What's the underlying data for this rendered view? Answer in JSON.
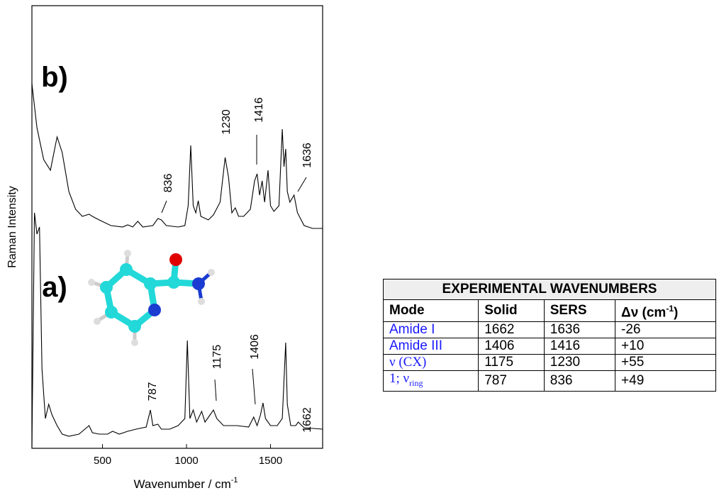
{
  "chart_data": {
    "type": "line",
    "xlabel": "Wavenumber / cm",
    "xlabel_sup": "-1",
    "ylabel": "Raman Intensity",
    "xlim": [
      80,
      1810
    ],
    "ylim": [
      0,
      624
    ],
    "xticks": [
      500,
      1000,
      1500
    ],
    "series": [
      {
        "color": "#000000",
        "x": [
          80,
          110,
          150,
          190,
          230,
          260,
          300,
          340,
          380,
          420,
          440,
          480,
          550,
          620,
          650,
          680,
          710,
          740,
          800,
          830,
          850,
          880,
          950,
          990,
          1010,
          1025,
          1040,
          1055,
          1070,
          1085,
          1130,
          1160,
          1200,
          1230,
          1250,
          1270,
          1290,
          1310,
          1340,
          1380,
          1405,
          1420,
          1435,
          1450,
          1465,
          1485,
          1500,
          1520,
          1550,
          1570,
          1580,
          1590,
          1600,
          1615,
          1640,
          1660,
          1700,
          1750,
          1810
        ],
        "values": [
          514,
          452,
          407,
          392,
          439,
          417,
          362,
          337,
          327,
          330,
          327,
          322,
          314,
          312,
          315,
          312,
          320,
          312,
          314,
          324,
          322,
          314,
          312,
          314,
          342,
          427,
          342,
          332,
          349,
          327,
          322,
          329,
          347,
          410,
          382,
          332,
          339,
          327,
          327,
          337,
          377,
          387,
          357,
          377,
          347,
          392,
          342,
          334,
          342,
          450,
          397,
          422,
          362,
          347,
          357,
          332,
          314,
          310,
          310
        ]
      },
      {
        "color": "#000000",
        "x": [
          80,
          95,
          110,
          125,
          140,
          160,
          180,
          200,
          230,
          260,
          300,
          360,
          420,
          440,
          480,
          530,
          560,
          600,
          650,
          700,
          760,
          785,
          800,
          830,
          850,
          900,
          950,
          990,
          1005,
          1020,
          1040,
          1060,
          1090,
          1110,
          1140,
          1160,
          1180,
          1220,
          1260,
          1300,
          1370,
          1400,
          1420,
          1440,
          1455,
          1470,
          1500,
          1540,
          1570,
          1590,
          1600,
          1620,
          1650,
          1665,
          1700,
          1810
        ],
        "values": [
          2,
          332,
          302,
          312,
          112,
          42,
          62,
          47,
          32,
          20,
          17,
          20,
          32,
          22,
          20,
          20,
          24,
          20,
          24,
          27,
          30,
          54,
          32,
          34,
          27,
          27,
          32,
          42,
          152,
          42,
          54,
          37,
          52,
          37,
          47,
          54,
          42,
          32,
          32,
          32,
          30,
          44,
          32,
          47,
          64,
          42,
          32,
          32,
          42,
          149,
          62,
          32,
          32,
          37,
          29,
          27
        ]
      }
    ],
    "annotations": [
      "b)",
      "a)",
      "836",
      "1230",
      "1416",
      "1636",
      "787",
      "1175",
      "1406",
      "1662"
    ]
  },
  "table": {
    "title": "EXPERIMENTAL WAVENUMBERS",
    "header": [
      "Mode",
      "Solid",
      "SERS",
      {
        "text": "Δν (cm",
        "sup": "-1",
        "tail": ")"
      }
    ],
    "rows": [
      [
        {
          "text": "Amide I"
        },
        "1662",
        "1636",
        "-26"
      ],
      [
        {
          "text": "Amide III"
        },
        "1406",
        "1416",
        "+10"
      ],
      [
        {
          "text": "ν (CX)"
        },
        "1175",
        "1230",
        "+55"
      ],
      [
        {
          "text": "1; ν",
          "sub": "ring"
        },
        "787",
        "836",
        "+49"
      ]
    ]
  }
}
